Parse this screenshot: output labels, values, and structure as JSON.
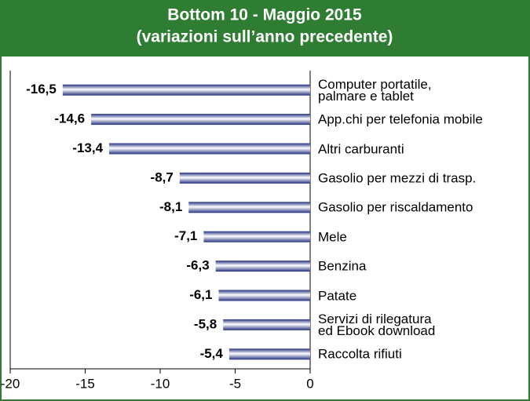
{
  "chart_data": {
    "type": "bar",
    "orientation": "horizontal",
    "title": "Bottom 10 - Maggio 2015",
    "subtitle": "(variazioni sull’anno precedente)",
    "categories": [
      "Computer portatile,\npalmare e tablet",
      "App.chi per telefonia mobile",
      "Altri carburanti",
      "Gasolio per mezzi di trasp.",
      "Gasolio per riscaldamento",
      "Mele",
      "Benzina",
      "Patate",
      "Servizi di rilegatura\ned Ebook download",
      "Raccolta rifiuti"
    ],
    "values": [
      -16.5,
      -14.6,
      -13.4,
      -8.7,
      -8.1,
      -7.1,
      -6.3,
      -6.1,
      -5.8,
      -5.4
    ],
    "value_labels": [
      "-16,5",
      "-14,6",
      "-13,4",
      "-8,7",
      "-8,1",
      "-7,1",
      "-6,3",
      "-6,1",
      "-5,8",
      "-5,4"
    ],
    "color": "#25307f",
    "xlim": [
      -20,
      0
    ],
    "xticks": [
      -20,
      -15,
      -10,
      -5,
      0
    ]
  }
}
